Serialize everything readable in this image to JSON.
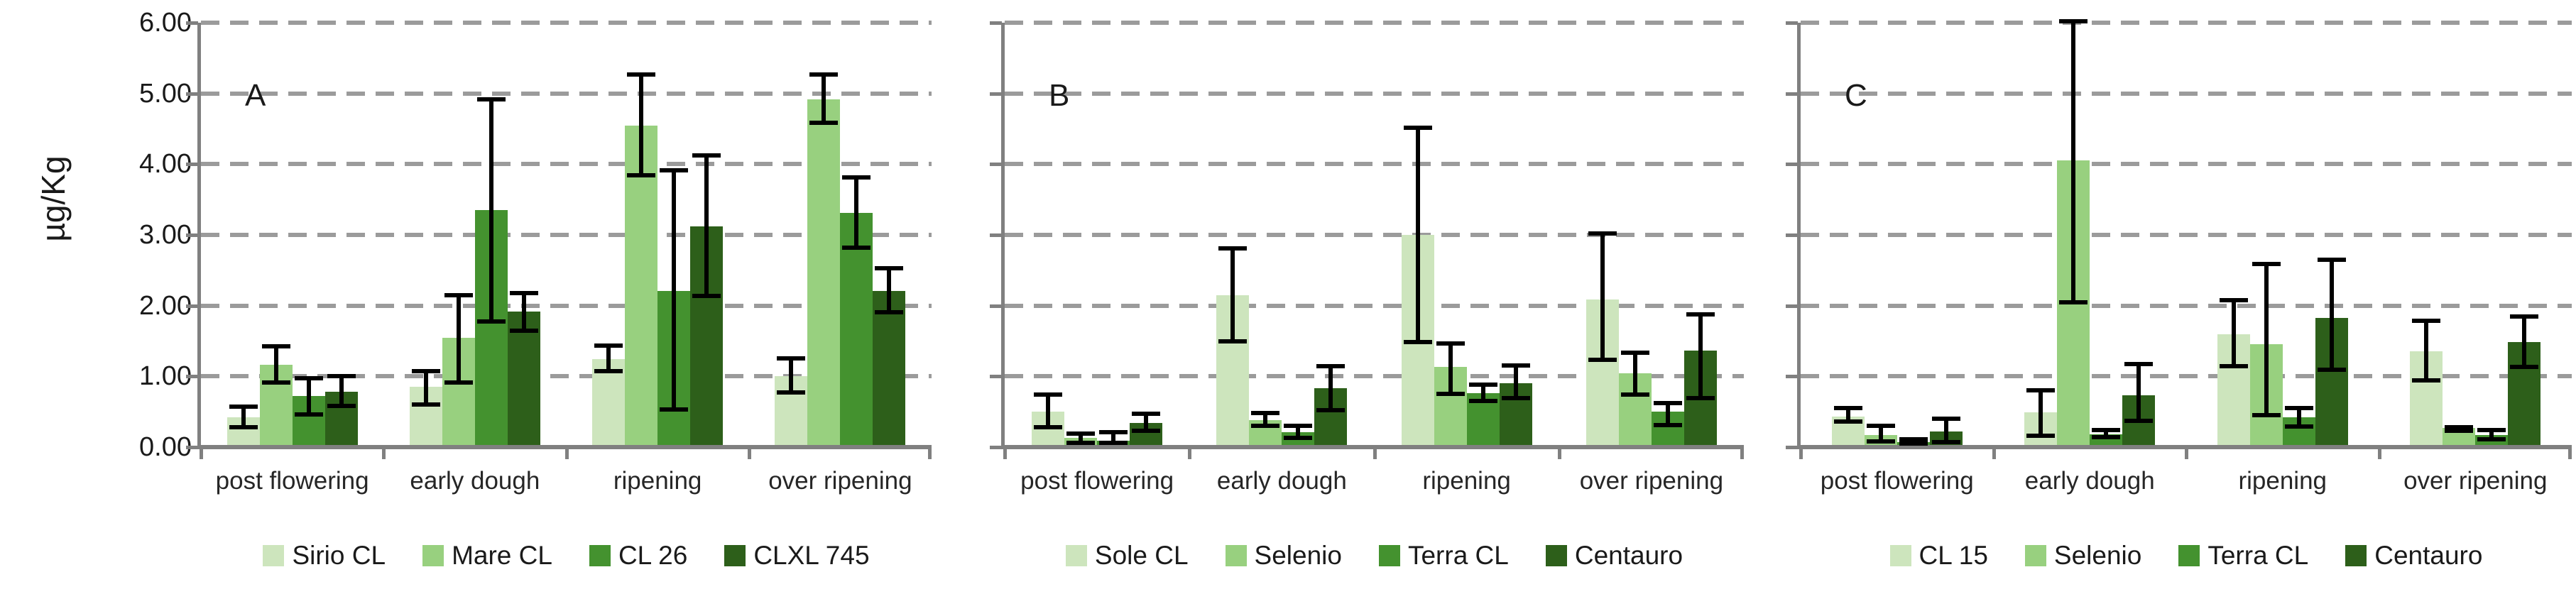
{
  "figure": {
    "y_axis_label": "µg/Kg",
    "y_ticks": [
      "6.00",
      "5.00",
      "4.00",
      "3.00",
      "2.00",
      "1.00",
      "0.00"
    ],
    "grid_color": "#9b9b9b",
    "axis_color": "#808080",
    "error_bar_color": "#000000",
    "series_colors": [
      "#cde5bd",
      "#98d07f",
      "#44922f",
      "#2d5f1a"
    ]
  },
  "chart_data": [
    {
      "type": "bar",
      "panel": "A",
      "title": "",
      "xlabel": "",
      "ylabel": "µg/Kg",
      "ylim": [
        0,
        6
      ],
      "grid": true,
      "legend_position": "bottom",
      "categories": [
        "post flowering",
        "early dough",
        "ripening",
        "over ripening"
      ],
      "series": [
        {
          "name": "Sirio CL",
          "values": [
            0.42,
            0.85,
            1.24,
            1.0
          ],
          "err_low": [
            0.25,
            0.57,
            1.04,
            0.74
          ],
          "err_high": [
            0.6,
            1.1,
            1.46,
            1.28
          ]
        },
        {
          "name": "Mare CL",
          "values": [
            1.16,
            1.55,
            4.55,
            4.92
          ],
          "err_low": [
            0.88,
            0.88,
            3.81,
            4.56
          ],
          "err_high": [
            1.45,
            2.18,
            5.3,
            5.3
          ]
        },
        {
          "name": "CL 26",
          "values": [
            0.72,
            3.35,
            2.21,
            3.31
          ],
          "err_low": [
            0.43,
            1.75,
            0.5,
            2.79
          ],
          "err_high": [
            1.0,
            4.95,
            3.94,
            3.84
          ]
        },
        {
          "name": "CLXL 745",
          "values": [
            0.78,
            1.92,
            3.12,
            2.21
          ],
          "err_low": [
            0.55,
            1.62,
            2.11,
            1.88
          ],
          "err_high": [
            1.03,
            2.21,
            4.15,
            2.56
          ]
        }
      ]
    },
    {
      "type": "bar",
      "panel": "B",
      "title": "",
      "xlabel": "",
      "ylabel": "",
      "ylim": [
        0,
        6
      ],
      "grid": true,
      "legend_position": "bottom",
      "categories": [
        "post flowering",
        "early dough",
        "ripening",
        "over ripening"
      ],
      "series": [
        {
          "name": "Sole CL",
          "values": [
            0.5,
            2.15,
            3.0,
            2.09
          ],
          "err_low": [
            0.25,
            1.46,
            1.45,
            1.2
          ],
          "err_high": [
            0.77,
            2.84,
            4.55,
            3.05
          ]
        },
        {
          "name": "Selenio",
          "values": [
            0.13,
            0.38,
            1.13,
            1.04
          ],
          "err_low": [
            0.03,
            0.27,
            0.72,
            0.71
          ],
          "err_high": [
            0.22,
            0.51,
            1.5,
            1.36
          ]
        },
        {
          "name": "Terra CL",
          "values": [
            0.09,
            0.21,
            0.76,
            0.5
          ],
          "err_low": [
            0.03,
            0.1,
            0.62,
            0.28
          ],
          "err_high": [
            0.24,
            0.33,
            0.91,
            0.65
          ]
        },
        {
          "name": "Centauro",
          "values": [
            0.34,
            0.83,
            0.9,
            1.36
          ],
          "err_low": [
            0.2,
            0.49,
            0.66,
            0.66
          ],
          "err_high": [
            0.5,
            1.17,
            1.18,
            1.91
          ]
        }
      ]
    },
    {
      "type": "bar",
      "panel": "C",
      "title": "",
      "xlabel": "",
      "ylabel": "",
      "ylim": [
        0,
        6
      ],
      "grid": true,
      "legend_position": "bottom",
      "categories": [
        "post flowering",
        "early dough",
        "ripening",
        "over ripening"
      ],
      "series": [
        {
          "name": "CL 15",
          "values": [
            0.43,
            0.49,
            1.6,
            1.35
          ],
          "err_low": [
            0.33,
            0.13,
            1.11,
            0.91
          ],
          "err_high": [
            0.58,
            0.83,
            2.11,
            1.82
          ]
        },
        {
          "name": "Selenio",
          "values": [
            0.17,
            4.05,
            1.45,
            0.27
          ],
          "err_low": [
            0.05,
            2.02,
            0.42,
            0.2
          ],
          "err_high": [
            0.33,
            6.05,
            2.62,
            0.31
          ]
        },
        {
          "name": "Terra CL",
          "values": [
            0.07,
            0.18,
            0.42,
            0.17
          ],
          "err_low": [
            0.02,
            0.11,
            0.26,
            0.08
          ],
          "err_high": [
            0.14,
            0.27,
            0.58,
            0.27
          ]
        },
        {
          "name": "Centauro",
          "values": [
            0.22,
            0.73,
            1.83,
            1.49
          ],
          "err_low": [
            0.04,
            0.34,
            1.06,
            1.1
          ],
          "err_high": [
            0.43,
            1.2,
            2.68,
            1.88
          ]
        }
      ]
    }
  ]
}
